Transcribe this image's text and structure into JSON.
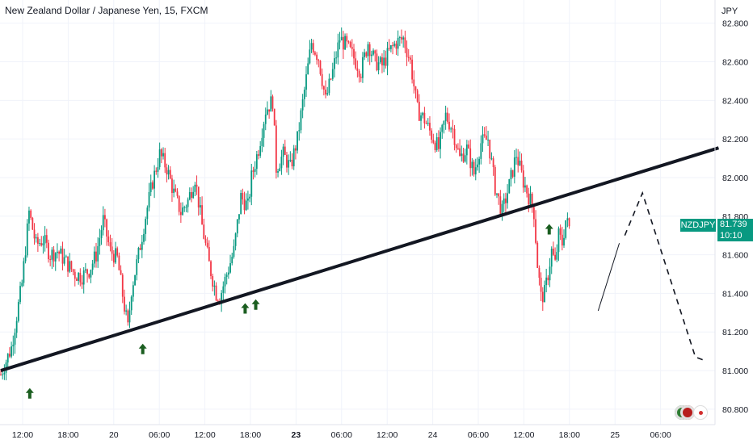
{
  "header": {
    "title": "New Zealand Dollar / Japanese Yen, 15, FXCM",
    "currency": "JPY"
  },
  "price_tag": {
    "symbol": "NZDJPY",
    "price": "81.739",
    "countdown": "10:10"
  },
  "colors": {
    "up": "#089981",
    "down": "#f23645",
    "trendline": "#131722",
    "arrow": "#1b5e20",
    "grid": "#f0f3fa"
  },
  "chart_data": {
    "type": "candlestick",
    "ylim": [
      80.72,
      82.92
    ],
    "y_ticks": [
      "82.800",
      "82.600",
      "82.400",
      "82.200",
      "82.000",
      "81.800",
      "81.600",
      "81.400",
      "81.200",
      "81.000",
      "80.800"
    ],
    "x_ticks": [
      {
        "label": "12:00",
        "bold": false
      },
      {
        "label": "18:00",
        "bold": false
      },
      {
        "label": "20",
        "bold": false
      },
      {
        "label": "06:00",
        "bold": false
      },
      {
        "label": "12:00",
        "bold": false
      },
      {
        "label": "18:00",
        "bold": false
      },
      {
        "label": "23",
        "bold": true
      },
      {
        "label": "06:00",
        "bold": false
      },
      {
        "label": "12:00",
        "bold": false
      },
      {
        "label": "24",
        "bold": false
      },
      {
        "label": "06:00",
        "bold": false
      },
      {
        "label": "12:00",
        "bold": false
      },
      {
        "label": "18:00",
        "bold": false
      },
      {
        "label": "25",
        "bold": false
      },
      {
        "label": "06:00",
        "bold": false
      }
    ],
    "price_path": [
      [
        0,
        80.98
      ],
      [
        3,
        81.12
      ],
      [
        6,
        81.45
      ],
      [
        8,
        81.82
      ],
      [
        10,
        81.65
      ],
      [
        12,
        81.68
      ],
      [
        14,
        81.6
      ],
      [
        16,
        81.62
      ],
      [
        19,
        81.55
      ],
      [
        21,
        81.5
      ],
      [
        23,
        81.49
      ],
      [
        25,
        81.52
      ],
      [
        27,
        81.6
      ],
      [
        29,
        81.78
      ],
      [
        31,
        81.62
      ],
      [
        33,
        81.58
      ],
      [
        35,
        81.33
      ],
      [
        36,
        81.22
      ],
      [
        37,
        81.42
      ],
      [
        39,
        81.6
      ],
      [
        41,
        81.8
      ],
      [
        43,
        81.98
      ],
      [
        45,
        82.12
      ],
      [
        47,
        82.05
      ],
      [
        49,
        81.92
      ],
      [
        51,
        81.82
      ],
      [
        53,
        81.88
      ],
      [
        55,
        82.0
      ],
      [
        57,
        81.75
      ],
      [
        59,
        81.55
      ],
      [
        61,
        81.4
      ],
      [
        62,
        81.38
      ],
      [
        64,
        81.5
      ],
      [
        66,
        81.62
      ],
      [
        68,
        81.9
      ],
      [
        70,
        81.85
      ],
      [
        71,
        82.0
      ],
      [
        73,
        82.15
      ],
      [
        75,
        82.35
      ],
      [
        77,
        82.4
      ],
      [
        78,
        82.05
      ],
      [
        80,
        82.12
      ],
      [
        82,
        82.05
      ],
      [
        84,
        82.2
      ],
      [
        86,
        82.45
      ],
      [
        88,
        82.7
      ],
      [
        90,
        82.62
      ],
      [
        92,
        82.4
      ],
      [
        94,
        82.55
      ],
      [
        96,
        82.72
      ],
      [
        98,
        82.68
      ],
      [
        100,
        82.62
      ],
      [
        102,
        82.55
      ],
      [
        104,
        82.7
      ],
      [
        106,
        82.6
      ],
      [
        108,
        82.58
      ],
      [
        110,
        82.65
      ],
      [
        112,
        82.7
      ],
      [
        114,
        82.72
      ],
      [
        116,
        82.6
      ],
      [
        118,
        82.35
      ],
      [
        120,
        82.3
      ],
      [
        122,
        82.22
      ],
      [
        124,
        82.15
      ],
      [
        126,
        82.32
      ],
      [
        128,
        82.25
      ],
      [
        130,
        82.1
      ],
      [
        132,
        82.15
      ],
      [
        134,
        82.02
      ],
      [
        136,
        82.18
      ],
      [
        138,
        82.2
      ],
      [
        140,
        81.95
      ],
      [
        142,
        81.82
      ],
      [
        144,
        81.96
      ],
      [
        146,
        82.12
      ],
      [
        148,
        81.98
      ],
      [
        150,
        81.88
      ],
      [
        151,
        81.82
      ],
      [
        152,
        81.55
      ],
      [
        153,
        81.38
      ],
      [
        154,
        81.4
      ],
      [
        155,
        81.5
      ],
      [
        156,
        81.62
      ],
      [
        157,
        81.55
      ],
      [
        158,
        81.7
      ],
      [
        159,
        81.66
      ],
      [
        160,
        81.78
      ],
      [
        161,
        81.74
      ]
    ],
    "trendline": [
      [
        0,
        81.0
      ],
      [
        185,
        82.05
      ]
    ],
    "projection": [
      [
        163,
        81.7
      ],
      [
        168,
        81.92
      ],
      [
        183,
        81.07
      ],
      [
        186,
        81.05
      ]
    ],
    "channel_line": [
      [
        155,
        81.31
      ],
      [
        161,
        81.66
      ]
    ],
    "arrows": [
      [
        5,
        80.88
      ],
      [
        37,
        81.11
      ],
      [
        66,
        81.32
      ],
      [
        69,
        81.34
      ],
      [
        148,
        81.73
      ]
    ]
  }
}
